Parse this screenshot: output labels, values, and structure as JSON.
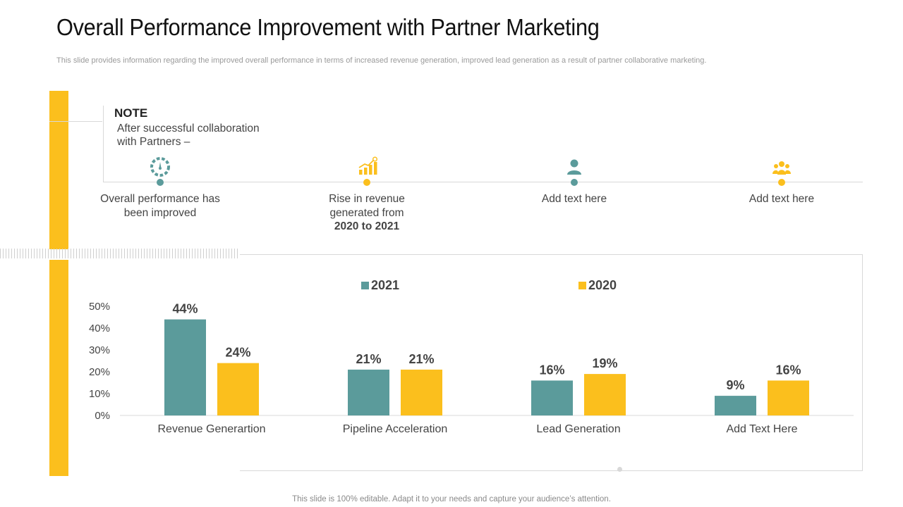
{
  "title": "Overall Performance Improvement with Partner Marketing",
  "subtitle": "This slide provides information regarding the improved overall performance in terms of increased revenue generation, improved lead generation as a result of partner collaborative marketing.",
  "note": {
    "title": "NOTE",
    "text": "After successful collaboration with Partners –"
  },
  "features": [
    {
      "icon": "speedometer-icon",
      "line1": "Overall performance has been improved",
      "line2": ""
    },
    {
      "icon": "growth-chart-icon",
      "line1": "Rise in revenue generated from",
      "line2": "2020 to 2021"
    },
    {
      "icon": "person-icon",
      "line1": "Add text here",
      "line2": ""
    },
    {
      "icon": "team-icon",
      "line1": "Add text here",
      "line2": ""
    }
  ],
  "colors": {
    "teal": "#5b9b9b",
    "yellow": "#fbbf1d",
    "text": "#444444",
    "axis": "#d9d9d9"
  },
  "chart_data": {
    "type": "bar",
    "categories": [
      "Revenue Generartion",
      "Pipeline Acceleration",
      "Lead Generation",
      "Add Text Here"
    ],
    "series": [
      {
        "name": "2021",
        "values": [
          44,
          21,
          16,
          9
        ],
        "labels": [
          "44%",
          "21%",
          "16%",
          "9%"
        ]
      },
      {
        "name": "2020",
        "values": [
          24,
          21,
          19,
          16
        ],
        "labels": [
          "24%",
          "21%",
          "19%",
          "16%"
        ]
      }
    ],
    "yticks": [
      0,
      10,
      20,
      30,
      40,
      50
    ],
    "ytick_labels": [
      "0%",
      "10%",
      "20%",
      "30%",
      "40%",
      "50%"
    ],
    "ylim": [
      0,
      50
    ],
    "legend_position": "top",
    "grid": false,
    "title": "",
    "xlabel": "",
    "ylabel": ""
  },
  "footer": "This slide is 100% editable. Adapt it to your needs and capture your audience’s attention."
}
